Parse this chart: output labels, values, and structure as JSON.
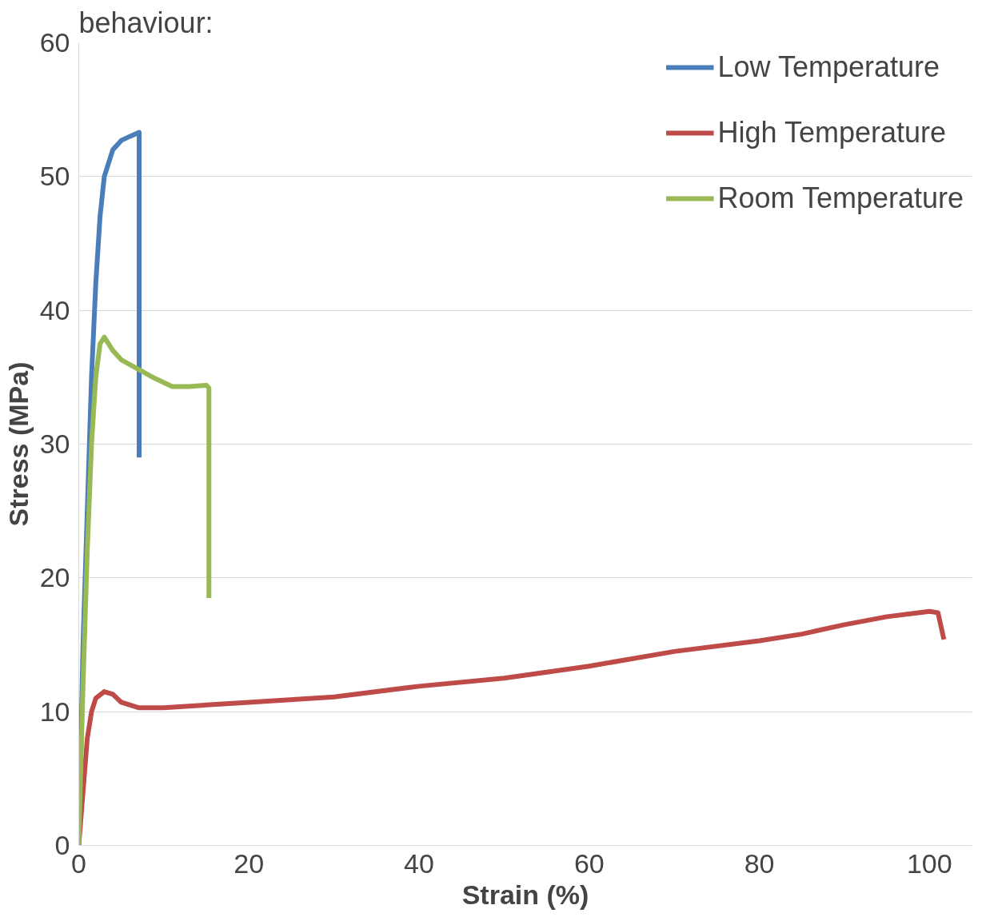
{
  "chart_data": {
    "type": "line",
    "xlabel": "Strain (%)",
    "ylabel": "Stress (MPa)",
    "annotations": [
      "behaviour:"
    ],
    "xlim": [
      0,
      105
    ],
    "xticks": [
      0,
      20,
      40,
      60,
      80,
      100
    ],
    "ylim": [
      0,
      60
    ],
    "yticks": [
      0,
      10,
      20,
      30,
      40,
      50,
      60
    ],
    "grid": "y",
    "legend": "top right",
    "marker": "none",
    "line_style": "solid",
    "series": [
      {
        "name": "Low Temperature",
        "color": "#4a7ebb",
        "x": [
          0,
          0.5,
          1,
          1.5,
          2,
          2.5,
          3,
          4,
          5,
          6,
          7.1,
          7.1
        ],
        "values": [
          0,
          15,
          25,
          35,
          42,
          47,
          50,
          52,
          52.7,
          53,
          53.3,
          29
        ]
      },
      {
        "name": "High Temperature",
        "color": "#be4b48",
        "x": [
          0,
          0.5,
          1,
          1.5,
          2,
          3,
          4,
          5,
          7,
          10,
          15,
          20,
          30,
          40,
          50,
          60,
          70,
          80,
          85,
          90,
          95,
          100,
          101,
          101.7
        ],
        "values": [
          0,
          4,
          8,
          10,
          11,
          11.5,
          11.3,
          10.7,
          10.3,
          10.3,
          10.5,
          10.7,
          11.1,
          11.9,
          12.5,
          13.4,
          14.5,
          15.3,
          15.8,
          16.5,
          17.1,
          17.5,
          17.4,
          15.4
        ]
      },
      {
        "name": "Room Temperature",
        "color": "#98b954",
        "x": [
          0,
          0.5,
          1,
          1.5,
          2,
          2.5,
          3,
          4,
          5,
          7,
          9,
          11,
          13,
          15,
          15.3,
          15.3
        ],
        "values": [
          0,
          12,
          22,
          30,
          35,
          37.5,
          38,
          37,
          36.3,
          35.6,
          34.9,
          34.3,
          34.3,
          34.4,
          34.2,
          18.5
        ]
      }
    ]
  }
}
